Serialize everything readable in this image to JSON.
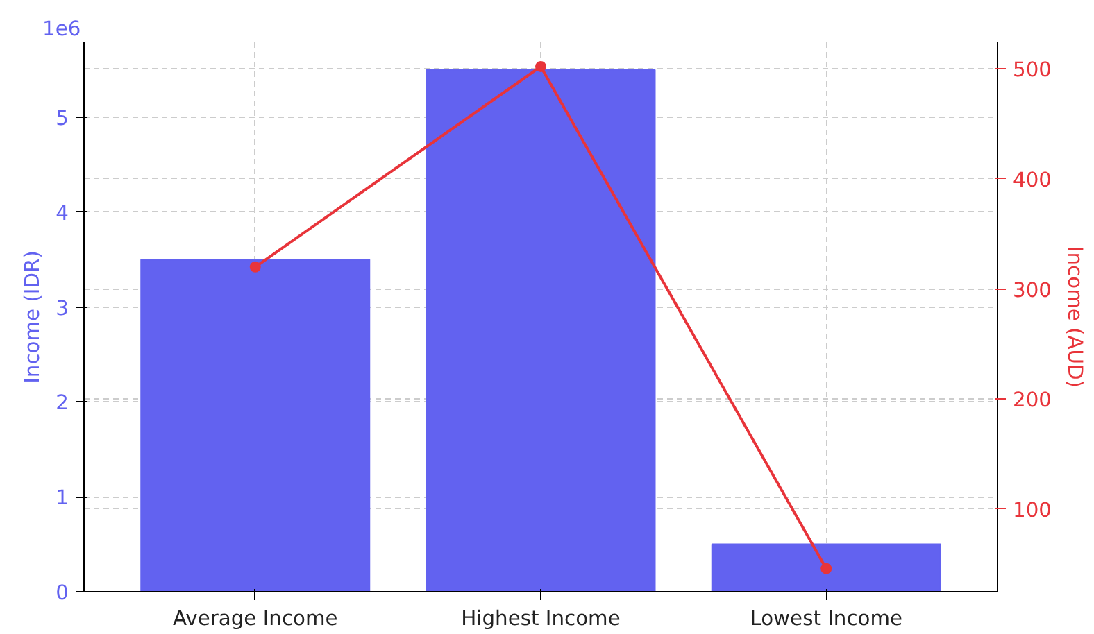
{
  "chart_data": {
    "type": "bar",
    "categories": [
      "Average Income",
      "Highest Income",
      "Lowest Income"
    ],
    "series": [
      {
        "color": "#6262f0",
        "values": [
          3.5,
          5.5,
          0.5
        ]
      },
      {
        "type": "line",
        "axis": "y2",
        "color": "#e8343a",
        "values": [
          320,
          502,
          46
        ]
      }
    ],
    "ylabel": "Income (IDR)",
    "y2label": "Income (AUD)",
    "ylim": [
      0,
      5.79
    ],
    "yticks": [
      0,
      1,
      2,
      3,
      4,
      5
    ],
    "y2lim": [
      25,
      524
    ],
    "y2ticks": [
      100,
      200,
      300,
      400,
      500
    ],
    "annotations": [
      "1e6"
    ],
    "grid": true,
    "marker": "circle",
    "line_style": "solid"
  }
}
